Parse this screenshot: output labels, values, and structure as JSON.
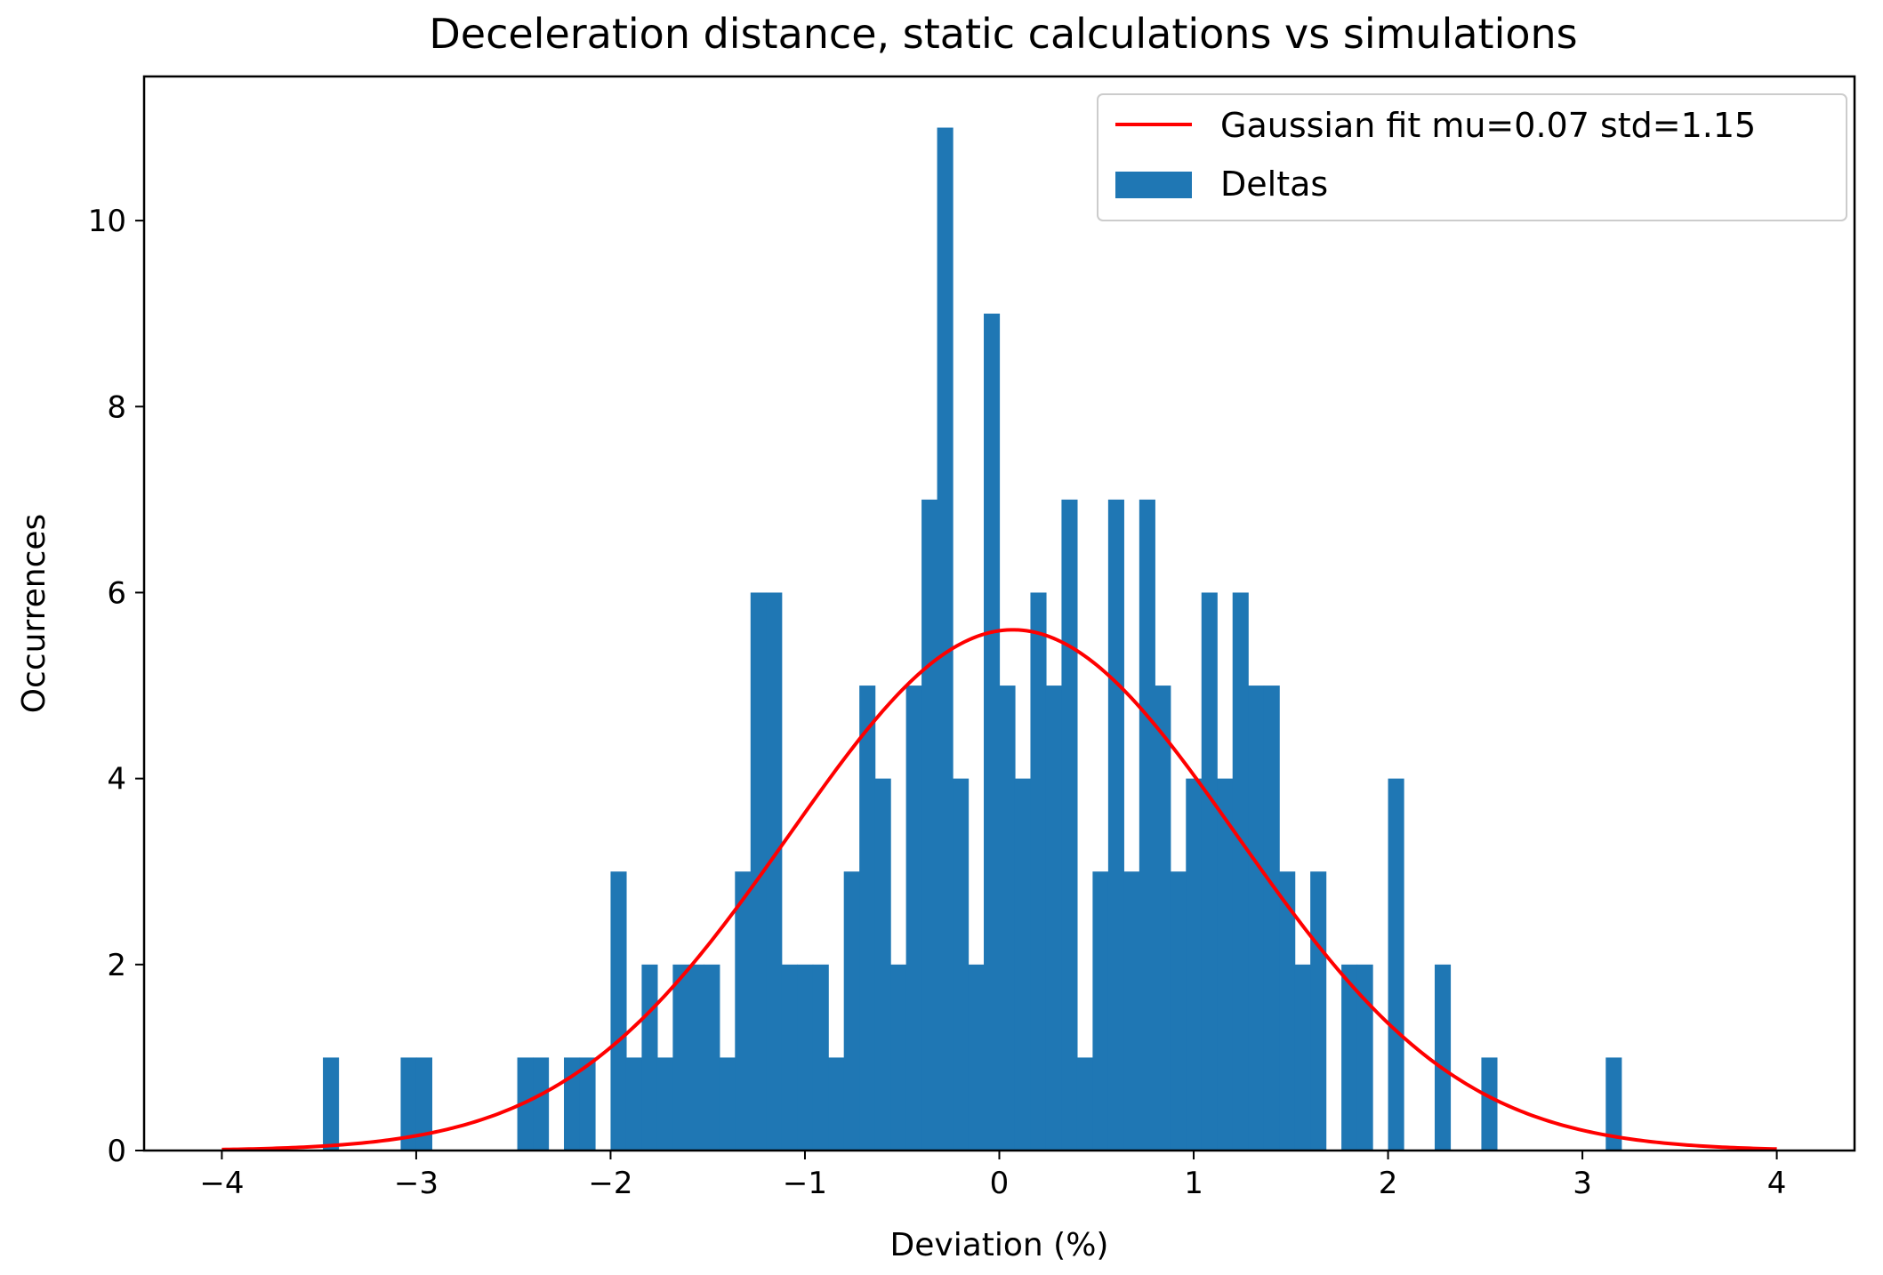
{
  "chart_data": {
    "type": "bar",
    "title": "Deceleration distance, static calculations vs simulations",
    "xlabel": "Deviation (%)",
    "ylabel": "Occurrences",
    "xlim": [
      -4.4,
      4.4
    ],
    "ylim": [
      0,
      11.55
    ],
    "xticks": [
      -4,
      -3,
      -2,
      -1,
      0,
      1,
      2,
      3,
      4
    ],
    "xtick_labels": [
      "−4",
      "−3",
      "−2",
      "−1",
      "0",
      "1",
      "2",
      "3",
      "4"
    ],
    "yticks": [
      0,
      2,
      4,
      6,
      8,
      10
    ],
    "ytick_labels": [
      "0",
      "2",
      "4",
      "6",
      "8",
      "10"
    ],
    "grid": false,
    "legend_position": "top-right",
    "bar_width": 0.08,
    "colors": {
      "bars": "#1f77b4",
      "fit": "#ff0000"
    },
    "series": [
      {
        "name": "Deltas",
        "kind": "histogram",
        "bin_edges_start": [
          -3.48,
          -3.08,
          -3.0,
          -2.48,
          -2.4,
          -2.24,
          -2.16,
          -2.0,
          -1.92,
          -1.84,
          -1.76,
          -1.68,
          -1.6,
          -1.52,
          -1.44,
          -1.36,
          -1.28,
          -1.2,
          -1.12,
          -1.04,
          -0.96,
          -0.88,
          -0.8,
          -0.72,
          -0.64,
          -0.56,
          -0.48,
          -0.4,
          -0.32,
          -0.24,
          -0.16,
          -0.08,
          0.0,
          0.08,
          0.16,
          0.24,
          0.32,
          0.4,
          0.48,
          0.56,
          0.64,
          0.72,
          0.8,
          0.88,
          0.96,
          1.04,
          1.12,
          1.2,
          1.28,
          1.36,
          1.44,
          1.52,
          1.6,
          1.76,
          1.84,
          2.0,
          2.24,
          2.48,
          3.12
        ],
        "values": [
          1,
          1,
          1,
          1,
          1,
          1,
          1,
          3,
          1,
          2,
          1,
          2,
          2,
          2,
          1,
          3,
          6,
          6,
          2,
          2,
          2,
          1,
          3,
          5,
          4,
          2,
          5,
          7,
          11,
          4,
          2,
          9,
          5,
          4,
          6,
          5,
          7,
          1,
          3,
          7,
          3,
          7,
          5,
          3,
          4,
          6,
          4,
          6,
          5,
          5,
          3,
          2,
          3,
          2,
          2,
          4,
          2,
          1,
          1
        ]
      },
      {
        "name": "Gaussian fit mu=0.07 std=1.15",
        "kind": "gaussian_fit",
        "mu": 0.07,
        "std": 1.15,
        "peak": 5.6,
        "x_range": [
          -4,
          4
        ]
      }
    ]
  }
}
